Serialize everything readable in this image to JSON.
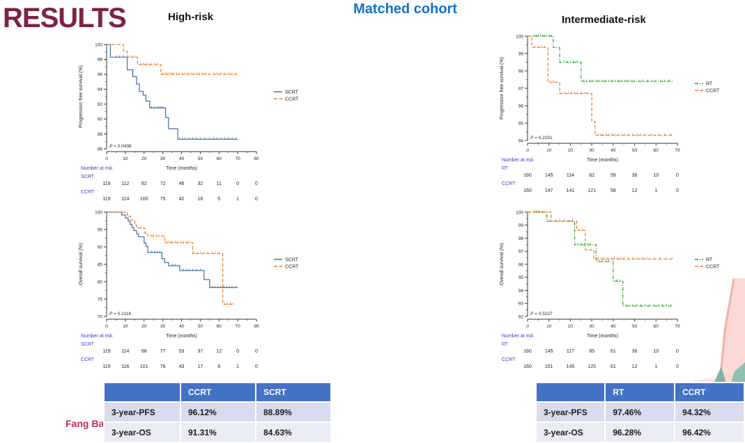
{
  "page": {
    "title": "RESULTS",
    "heading_left": "High-risk",
    "heading_center": "Matched cohort",
    "heading_right": "Intermediate-risk",
    "author": "Fang Bai"
  },
  "colors": {
    "title": "#7d2248",
    "matched_cohort": "#1072c8",
    "scrt": "#3d6fa5",
    "ccrt": "#ec7d2d",
    "rt": "#2ea12e",
    "risk_label": "#3939cf",
    "axis": "#333333",
    "table_header_bg": "#4472c4",
    "table_row1_bg": "#d9dcee",
    "table_row2_bg": "#e9ebf5",
    "author": "#be2a66"
  },
  "chart_data": [
    {
      "type": "line",
      "id": "high-risk-pfs",
      "ylabel": "Progression free survival (%)",
      "xlabel": "Time (months)",
      "p_value": "P = 0.0438",
      "xlim": [
        0,
        80
      ],
      "xticks": [
        0,
        10,
        20,
        30,
        40,
        50,
        60,
        70,
        80
      ],
      "x_minor_step": 5,
      "ylim": [
        86,
        100
      ],
      "yticks": [
        86,
        88,
        90,
        92,
        94,
        96,
        98,
        100
      ],
      "legend_position": "right",
      "series": [
        {
          "name": "SCRT",
          "color_key": "scrt",
          "style": "solid",
          "steps": [
            [
              0,
              100
            ],
            [
              2,
              98.3
            ],
            [
              11,
              96.6
            ],
            [
              14,
              95.7
            ],
            [
              16,
              94.7
            ],
            [
              17.5,
              93.7
            ],
            [
              19.5,
              93.2
            ],
            [
              21,
              92.4
            ],
            [
              23,
              91.5
            ],
            [
              31.5,
              90.2
            ],
            [
              33,
              88.7
            ],
            [
              38,
              87.3
            ],
            [
              70,
              87.3
            ]
          ],
          "censors": [
            5,
            7,
            9,
            24,
            25.5,
            27,
            28,
            29,
            30,
            39,
            40.5,
            42,
            44,
            46,
            48,
            50,
            52.5,
            55,
            57,
            59,
            61,
            63,
            65,
            67,
            69
          ]
        },
        {
          "name": "CCRT",
          "color_key": "ccrt",
          "style": "dashed",
          "steps": [
            [
              0,
              100
            ],
            [
              9,
              99.1
            ],
            [
              11,
              98.3
            ],
            [
              16.5,
              97.3
            ],
            [
              29,
              96
            ],
            [
              70,
              96
            ]
          ],
          "censors": [
            12,
            13.5,
            15,
            18,
            19.5,
            21,
            22.5,
            24,
            25.5,
            27,
            30,
            31,
            32,
            33,
            34,
            35,
            36,
            37.5,
            39,
            40.5,
            42,
            43.5,
            45,
            46.5,
            48,
            49.5,
            51,
            53,
            55,
            57,
            59,
            61,
            63,
            65,
            67,
            69
          ]
        }
      ],
      "number_at_risk": {
        "label": "Number at risk",
        "rows": [
          {
            "name": "SCRT",
            "values": [
              119,
              112,
              92,
              72,
              46,
              32,
              11,
              0,
              0
            ]
          },
          {
            "name": "CCRT",
            "values": [
              119,
              114,
              100,
              75,
              42,
              16,
              5,
              1,
              0
            ]
          }
        ]
      }
    },
    {
      "type": "line",
      "id": "high-risk-os",
      "ylabel": "Overall survival (%)",
      "xlabel": "Time (months)",
      "p_value": "P = 0.2116",
      "xlim": [
        0,
        80
      ],
      "xticks": [
        0,
        10,
        20,
        30,
        40,
        50,
        60,
        70,
        80
      ],
      "x_minor_step": 5,
      "ylim": [
        70,
        100
      ],
      "yticks": [
        70,
        75,
        80,
        85,
        90,
        95,
        100
      ],
      "legend_position": "right",
      "series": [
        {
          "name": "SCRT",
          "color_key": "scrt",
          "style": "solid",
          "steps": [
            [
              0,
              100
            ],
            [
              8,
              99.2
            ],
            [
              10,
              98.3
            ],
            [
              11.5,
              97.4
            ],
            [
              12.5,
              96.5
            ],
            [
              13.5,
              95.6
            ],
            [
              14.5,
              94.7
            ],
            [
              16,
              93.8
            ],
            [
              17,
              92.9
            ],
            [
              20,
              91.1
            ],
            [
              21,
              90.2
            ],
            [
              22,
              88.4
            ],
            [
              29.5,
              86.6
            ],
            [
              31,
              85.5
            ],
            [
              33,
              84.6
            ],
            [
              39,
              83.2
            ],
            [
              52,
              80.6
            ],
            [
              55,
              78.3
            ],
            [
              70,
              78.3
            ]
          ],
          "censors": [
            24,
            25.5,
            27,
            28.5,
            35,
            36.5,
            41,
            42.5,
            44,
            46,
            48,
            50,
            56.5,
            58,
            59.5,
            61,
            62.5,
            64,
            65.5,
            67,
            69
          ]
        },
        {
          "name": "CCRT",
          "color_key": "ccrt",
          "style": "dashed",
          "steps": [
            [
              0,
              100
            ],
            [
              11,
              98.8
            ],
            [
              13,
              97.7
            ],
            [
              15,
              96.3
            ],
            [
              16,
              95.4
            ],
            [
              20.5,
              93.9
            ],
            [
              22,
              93.1
            ],
            [
              31,
              91.2
            ],
            [
              46,
              88.1
            ],
            [
              62,
              73.5
            ],
            [
              68,
              73.5
            ]
          ],
          "censors": [
            17,
            18.5,
            23.5,
            25,
            26.5,
            28,
            32,
            33.5,
            35,
            36.5,
            38,
            39.5,
            41,
            42.5,
            44,
            47,
            48.5,
            50,
            52,
            54,
            56,
            58,
            60,
            63,
            64.5,
            66,
            67.5
          ]
        }
      ],
      "number_at_risk": {
        "label": "Number at risk",
        "rows": [
          {
            "name": "SCRT",
            "values": [
              119,
              114,
              98,
              77,
              53,
              37,
              12,
              0,
              0
            ]
          },
          {
            "name": "CCRT",
            "values": [
              119,
              116,
              101,
              76,
              43,
              17,
              6,
              1,
              0
            ]
          }
        ]
      }
    },
    {
      "type": "line",
      "id": "intermediate-risk-pfs",
      "ylabel": "Progression free survival (%)",
      "xlabel": "Time (months)",
      "p_value": "P = 0.2151",
      "xlim": [
        0,
        70
      ],
      "xticks": [
        0,
        10,
        20,
        30,
        40,
        50,
        60,
        70
      ],
      "x_minor_step": 5,
      "ylim": [
        94,
        100
      ],
      "yticks": [
        94,
        95,
        96,
        97,
        98,
        99,
        100
      ],
      "legend_position": "right",
      "series": [
        {
          "name": "RT",
          "color_key": "rt",
          "style": "dashdot",
          "steps": [
            [
              0,
              100
            ],
            [
              12,
              99.35
            ],
            [
              15,
              98.5
            ],
            [
              25,
              97.4
            ],
            [
              68,
              97.4
            ]
          ],
          "censors": [
            3,
            4,
            5,
            6,
            7,
            8,
            9,
            10,
            11,
            17,
            18.5,
            20,
            21.5,
            23,
            26,
            27.5,
            29,
            30.5,
            32,
            33.5,
            35,
            36.5,
            38,
            39.5,
            41,
            42.5,
            44,
            45.5,
            47,
            48.5,
            50,
            52,
            54,
            56,
            58,
            60,
            62,
            64,
            66
          ]
        },
        {
          "name": "CCRT",
          "color_key": "ccrt",
          "style": "dashed",
          "steps": [
            [
              0,
              100
            ],
            [
              2,
              99.35
            ],
            [
              9.5,
              97.35
            ],
            [
              15,
              96.7
            ],
            [
              30,
              95.1
            ],
            [
              31.5,
              94.3
            ],
            [
              68,
              94.3
            ]
          ],
          "censors": [
            3.5,
            5,
            6.5,
            8,
            10.5,
            12,
            16,
            17.5,
            19,
            20.5,
            22,
            23.5,
            25,
            26.5,
            28,
            33,
            34,
            35,
            36.5,
            38,
            39.5,
            41,
            42.5,
            44,
            45.5,
            47,
            49,
            51,
            53,
            55,
            58,
            61,
            64,
            67
          ]
        }
      ],
      "number_at_risk": {
        "label": "Number at risk",
        "rows": [
          {
            "name": "RT",
            "values": [
              160,
              145,
              114,
              82,
              59,
              36,
              10,
              0
            ]
          },
          {
            "name": "CCRT",
            "values": [
              160,
              147,
              141,
              121,
              58,
              12,
              1,
              0
            ]
          }
        ]
      }
    },
    {
      "type": "line",
      "id": "intermediate-risk-os",
      "ylabel": "Overall survival (%)",
      "xlabel": "Time (months)",
      "p_value": "P = 0.5227",
      "xlim": [
        0,
        70
      ],
      "xticks": [
        0,
        10,
        20,
        30,
        40,
        50,
        60,
        70
      ],
      "x_minor_step": 5,
      "ylim": [
        92,
        100
      ],
      "yticks": [
        92,
        93,
        94,
        95,
        96,
        97,
        98,
        99,
        100
      ],
      "legend_position": "right",
      "series": [
        {
          "name": "RT",
          "color_key": "rt",
          "style": "dashdot",
          "steps": [
            [
              0,
              100
            ],
            [
              9,
              99.3
            ],
            [
              22,
              97.5
            ],
            [
              32,
              96.2
            ],
            [
              40,
              94.7
            ],
            [
              44.5,
              92.8
            ],
            [
              68,
              92.8
            ]
          ],
          "censors": [
            4,
            5.5,
            7,
            11,
            13,
            15,
            17,
            19,
            21,
            23.5,
            25,
            26.5,
            28,
            29.5,
            33.5,
            35,
            36.5,
            38,
            41.5,
            43,
            46,
            47.5,
            49,
            51,
            53,
            55,
            57,
            59,
            61,
            63,
            65,
            67
          ]
        },
        {
          "name": "CCRT",
          "color_key": "ccrt",
          "style": "dashed",
          "steps": [
            [
              0,
              100
            ],
            [
              11,
              99.3
            ],
            [
              23,
              98.6
            ],
            [
              27,
              97.1
            ],
            [
              31,
              96.4
            ],
            [
              68,
              96.4
            ]
          ],
          "censors": [
            3,
            5,
            7,
            13,
            15,
            17,
            19,
            21,
            24,
            25.5,
            33,
            34.5,
            36,
            37.5,
            39,
            40.5,
            42,
            43.5,
            45,
            47,
            49,
            51,
            53.5,
            56,
            59,
            62,
            65,
            67.5
          ]
        }
      ],
      "number_at_risk": {
        "label": "Number at risk",
        "rows": [
          {
            "name": "RT",
            "values": [
              160,
              145,
              117,
              85,
              61,
              36,
              10,
              0
            ]
          },
          {
            "name": "CCRT",
            "values": [
              160,
              151,
              145,
              125,
              61,
              12,
              1,
              0
            ]
          }
        ]
      }
    }
  ],
  "tables": {
    "high_risk": {
      "header": [
        "",
        "CCRT",
        "SCRT"
      ],
      "rows": [
        [
          "3-year-PFS",
          "96.12%",
          "88.89%"
        ],
        [
          "3-year-OS",
          "91.31%",
          "84.63%"
        ]
      ]
    },
    "intermediate_risk": {
      "header": [
        "",
        "RT",
        "CCRT"
      ],
      "rows": [
        [
          "3-year-PFS",
          "97.46%",
          "94.32%"
        ],
        [
          "3-year-OS",
          "96.28%",
          "96.42%"
        ]
      ]
    }
  }
}
